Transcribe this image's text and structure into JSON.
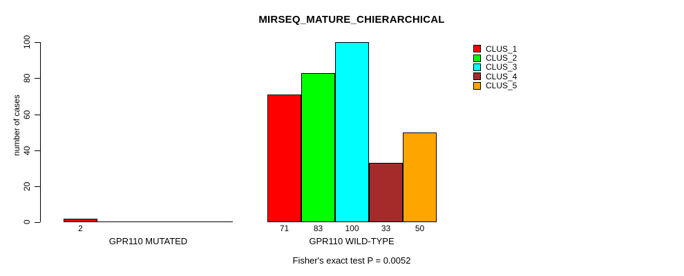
{
  "figure": {
    "title": "MIRSEQ_MATURE_CHIERARCHICAL",
    "y_axis_label": "number of cases",
    "annotation": "Fisher's exact test P = 0.0052"
  },
  "chart_data": {
    "type": "bar",
    "title": "MIRSEQ_MATURE_CHIERARCHICAL",
    "xlabel": "",
    "ylabel": "number of cases",
    "ylim": [
      0,
      100
    ],
    "yticks": [
      0,
      20,
      40,
      60,
      80,
      100
    ],
    "grid": false,
    "legend_position": "right",
    "background": "#ffffff",
    "categories": [
      "GPR110 MUTATED",
      "GPR110 WILD-TYPE"
    ],
    "series": [
      {
        "name": "CLUS_1",
        "color": "#FF0000",
        "values": [
          2,
          71
        ]
      },
      {
        "name": "CLUS_2",
        "color": "#00FF00",
        "values": [
          0,
          83
        ]
      },
      {
        "name": "CLUS_3",
        "color": "#00FFFF",
        "values": [
          0,
          100
        ]
      },
      {
        "name": "CLUS_4",
        "color": "#A52A2A",
        "values": [
          0,
          33
        ]
      },
      {
        "name": "CLUS_5",
        "color": "#FFA500",
        "values": [
          0,
          50
        ]
      }
    ],
    "bar_value_labels_shown": "nonzero values only, below each bar",
    "annotation": "Fisher's exact test P = 0.0052"
  }
}
